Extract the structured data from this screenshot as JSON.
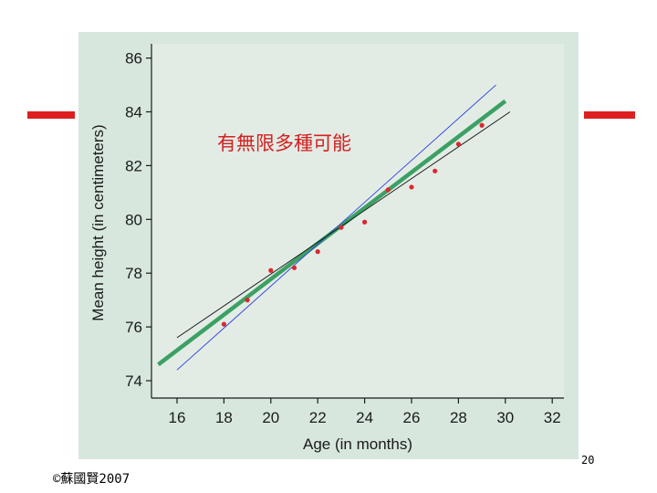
{
  "slide": {
    "page_number": "20",
    "copyright": "©蘇國賢2007"
  },
  "colors": {
    "panel": "#d7e7dd",
    "accent_red": "#dd1f1f",
    "fit_line": "#3ca064",
    "blue_line": "#2a3ee0",
    "point": "#d9282e"
  },
  "chart_data": {
    "type": "scatter",
    "xlabel": "Age (in months)",
    "ylabel": "Mean height (in centimeters)",
    "xlim": [
      15,
      32.5
    ],
    "ylim": [
      73.5,
      86.8
    ],
    "xticks": [
      16,
      18,
      20,
      22,
      24,
      26,
      28,
      30,
      32
    ],
    "yticks": [
      74,
      76,
      78,
      80,
      82,
      84,
      86
    ],
    "annotation": "有無限多種可能",
    "points": [
      {
        "x": 18,
        "y": 76.1
      },
      {
        "x": 19,
        "y": 77.0
      },
      {
        "x": 20,
        "y": 78.1
      },
      {
        "x": 21,
        "y": 78.2
      },
      {
        "x": 22,
        "y": 78.8
      },
      {
        "x": 23,
        "y": 79.7
      },
      {
        "x": 24,
        "y": 79.9
      },
      {
        "x": 25,
        "y": 81.1
      },
      {
        "x": 26,
        "y": 81.2
      },
      {
        "x": 27,
        "y": 81.8
      },
      {
        "x": 28,
        "y": 82.8
      },
      {
        "x": 29,
        "y": 83.5
      }
    ],
    "lines": [
      {
        "role": "fit",
        "x": [
          15.2,
          30.0
        ],
        "y": [
          74.6,
          84.4
        ]
      },
      {
        "role": "steep",
        "x": [
          16.0,
          29.6
        ],
        "y": [
          74.4,
          85.0
        ]
      },
      {
        "role": "shallow",
        "x": [
          16.0,
          30.2
        ],
        "y": [
          75.6,
          84.0
        ]
      }
    ]
  }
}
